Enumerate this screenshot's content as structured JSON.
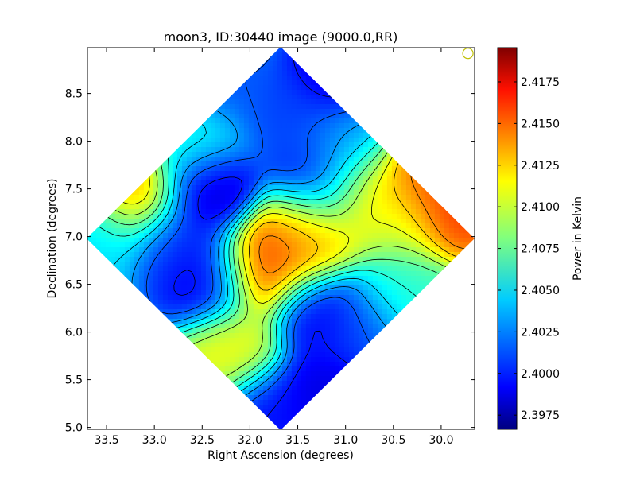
{
  "chart_data": {
    "type": "heatmap",
    "title": "moon3, ID:30440 image (9000.0,RR)",
    "xlabel": "Right Ascension (degrees)",
    "ylabel": "Declination (degrees)",
    "colorbar_label": "Power in Kelvin",
    "xlim": [
      33.7,
      29.65
    ],
    "ylim": [
      4.98,
      8.98
    ],
    "x_ticks": [
      33.5,
      33.0,
      32.5,
      32.0,
      31.5,
      31.0,
      30.5,
      30.0
    ],
    "x_tick_labels": [
      "33.5",
      "33.0",
      "32.5",
      "32.0",
      "31.5",
      "31.0",
      "30.5",
      "30.0"
    ],
    "y_ticks": [
      5.0,
      5.5,
      6.0,
      6.5,
      7.0,
      7.5,
      8.0,
      8.5
    ],
    "y_tick_labels": [
      "5.0",
      "5.5",
      "6.0",
      "6.5",
      "7.0",
      "7.5",
      "8.0",
      "8.5"
    ],
    "colorbar_range": [
      2.39665,
      2.41955
    ],
    "colorbar_ticks": [
      2.3975,
      2.4,
      2.4025,
      2.405,
      2.4075,
      2.41,
      2.4125,
      2.415,
      2.4175
    ],
    "colorbar_tick_labels": [
      "2.3975",
      "2.4000",
      "2.4025",
      "2.4050",
      "2.4075",
      "2.4100",
      "2.4125",
      "2.4150",
      "2.4175"
    ],
    "colormap": "jet",
    "map_footprint": "diamond",
    "map_center": [
      31.68,
      6.98
    ],
    "features": [
      {
        "ra": 31.42,
        "dec": 6.93,
        "value": 2.4162
      },
      {
        "ra": 31.88,
        "dec": 6.68,
        "value": 2.4158
      },
      {
        "ra": 29.85,
        "dec": 7.35,
        "value": 2.416
      },
      {
        "ra": 30.2,
        "dec": 7.55,
        "value": 2.4152
      },
      {
        "ra": 33.2,
        "dec": 7.45,
        "value": 2.4138
      },
      {
        "ra": 30.85,
        "dec": 7.45,
        "value": 2.4132
      },
      {
        "ra": 32.2,
        "dec": 5.8,
        "value": 2.411
      },
      {
        "ra": 30.5,
        "dec": 7.2,
        "value": 2.4095
      },
      {
        "ra": 31.3,
        "dec": 7.05,
        "value": 2.41
      },
      {
        "ra": 32.45,
        "dec": 7.5,
        "value": 2.3978
      },
      {
        "ra": 32.45,
        "dec": 6.55,
        "value": 2.3985
      },
      {
        "ra": 31.25,
        "dec": 7.55,
        "value": 2.3985
      },
      {
        "ra": 31.25,
        "dec": 6.25,
        "value": 2.3988
      },
      {
        "ra": 31.2,
        "dec": 5.35,
        "value": 2.3985
      },
      {
        "ra": 31.1,
        "dec": 8.75,
        "value": 2.3982
      },
      {
        "ra": 31.8,
        "dec": 5.15,
        "value": 2.3995
      },
      {
        "ra": 32.8,
        "dec": 6.9,
        "value": 2.4005
      },
      {
        "ra": 31.6,
        "dec": 8.3,
        "value": 2.4008
      },
      {
        "ra": 32.3,
        "dec": 8.6,
        "value": 2.4012
      },
      {
        "ra": 30.85,
        "dec": 6.1,
        "value": 2.401
      },
      {
        "ra": 31.0,
        "dec": 7.95,
        "value": 2.403
      },
      {
        "ra": 32.6,
        "dec": 8.0,
        "value": 2.406
      },
      {
        "ra": 30.5,
        "dec": 6.45,
        "value": 2.4065
      },
      {
        "ra": 33.55,
        "dec": 7.0,
        "value": 2.4045
      }
    ],
    "contour_levels": [
      2.3985,
      2.4,
      2.4015,
      2.403,
      2.4045,
      2.406,
      2.4075,
      2.409,
      2.4105,
      2.412,
      2.4135,
      2.415
    ],
    "marker": {
      "ra": 29.72,
      "dec": 8.92,
      "shape": "circle",
      "color": "#bfbf00"
    },
    "grid": false,
    "legend": "none"
  }
}
